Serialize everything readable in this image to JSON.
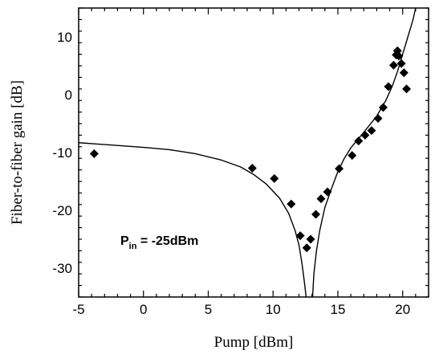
{
  "chart_data": {
    "type": "scatter",
    "title": "",
    "xlabel": "Pump [dBm]",
    "ylabel": "Fiber-to-fiber gain [dB]",
    "xlim": [
      -5,
      22
    ],
    "ylim": [
      -35,
      15
    ],
    "xticks": [
      -5,
      0,
      5,
      10,
      15,
      20
    ],
    "yticks": [
      -30,
      -20,
      -10,
      0,
      10
    ],
    "xtick_labels": [
      "-5",
      "0",
      "5",
      "10",
      "15",
      "20"
    ],
    "ytick_labels": [
      "-30",
      "-20",
      "-10",
      "0",
      "10"
    ],
    "grid": false,
    "annotation": {
      "main": "P",
      "sub": "in",
      "rest": " = -25dBm"
    },
    "series": [
      {
        "kind": "markers",
        "marker": "diamond",
        "points": [
          [
            -3.8,
            -10.2
          ],
          [
            8.4,
            -12.7
          ],
          [
            10.1,
            -14.5
          ],
          [
            11.4,
            -18.9
          ],
          [
            12.1,
            -24.4
          ],
          [
            12.6,
            -26.5
          ],
          [
            12.9,
            -25.0
          ],
          [
            13.3,
            -20.7
          ],
          [
            13.7,
            -18.0
          ],
          [
            14.2,
            -16.8
          ],
          [
            15.1,
            -12.8
          ],
          [
            16.1,
            -10.5
          ],
          [
            16.6,
            -8.0
          ],
          [
            17.1,
            -7.0
          ],
          [
            17.6,
            -6.2
          ],
          [
            18.1,
            -4.1
          ],
          [
            18.5,
            -2.2
          ],
          [
            18.9,
            1.4
          ],
          [
            19.3,
            5.1
          ],
          [
            19.5,
            6.9
          ],
          [
            19.6,
            7.6
          ],
          [
            19.7,
            6.7
          ],
          [
            19.9,
            5.4
          ],
          [
            20.1,
            3.8
          ],
          [
            20.3,
            1.0
          ]
        ]
      },
      {
        "kind": "line",
        "segments": [
          [
            [
              -5,
              -8.3
            ],
            [
              0,
              -9.1
            ],
            [
              2,
              -9.5
            ],
            [
              4,
              -10.2
            ],
            [
              6,
              -11.3
            ],
            [
              7.5,
              -12.5
            ],
            [
              8.5,
              -13.8
            ],
            [
              9.5,
              -15.5
            ],
            [
              10.5,
              -17.9
            ],
            [
              11.2,
              -20.5
            ],
            [
              11.7,
              -23.5
            ],
            [
              12.0,
              -26.0
            ],
            [
              12.25,
              -29.5
            ],
            [
              12.45,
              -33.0
            ],
            [
              12.55,
              -35.0
            ]
          ],
          [
            [
              13.05,
              -35.0
            ],
            [
              13.15,
              -31.0
            ],
            [
              13.35,
              -27.0
            ],
            [
              13.6,
              -23.5
            ],
            [
              14.0,
              -19.5
            ],
            [
              14.5,
              -16.3
            ],
            [
              15.0,
              -13.3
            ],
            [
              15.5,
              -11.0
            ],
            [
              16.0,
              -9.2
            ],
            [
              17.0,
              -6.5
            ],
            [
              18.0,
              -3.7
            ],
            [
              18.7,
              -1.0
            ],
            [
              19.2,
              1.5
            ],
            [
              19.6,
              4.0
            ],
            [
              20.0,
              7.0
            ],
            [
              20.4,
              10.0
            ],
            [
              20.8,
              13.0
            ],
            [
              21.0,
              15.0
            ]
          ]
        ]
      }
    ]
  }
}
